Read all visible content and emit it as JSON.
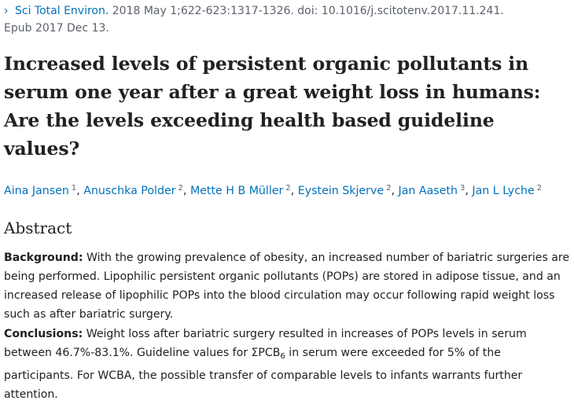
{
  "citation": {
    "chevron": "›",
    "journal": "Sci Total Environ.",
    "details": " 2018 May 1;622-623:1317-1326. doi: 10.1016/j.scitotenv.2017.11.241.",
    "epub": "Epub 2017 Dec 13."
  },
  "title": "Increased levels of persistent organic pollutants in serum one year after a great weight loss in humans: Are the levels exceeding health based guideline values?",
  "authors": [
    {
      "name": "Aina Jansen",
      "affiliation": "1"
    },
    {
      "name": "Anuschka Polder",
      "affiliation": "2"
    },
    {
      "name": "Mette H B Müller",
      "affiliation": "2"
    },
    {
      "name": "Eystein Skjerve",
      "affiliation": "2"
    },
    {
      "name": "Jan Aaseth",
      "affiliation": "3"
    },
    {
      "name": "Jan L Lyche",
      "affiliation": "2"
    }
  ],
  "author_separator": ", ",
  "abstract": {
    "heading": "Abstract",
    "background_label": "Background:",
    "background_text": " With the growing prevalence of obesity, an increased number of bariatric surgeries are being performed. Lipophilic persistent organic pollutants (POPs) are stored in adipose tissue, and an increased release of lipophilic POPs into the blood circulation may occur following rapid weight loss such as after bariatric surgery.",
    "conclusions_label": "Conclusions:",
    "conclusions_text_1": " Weight loss after bariatric surgery resulted in increases of POPs levels in serum between 46.7%-83.1%. Guideline values for ΣPCB",
    "conclusions_sub": "6",
    "conclusions_text_2": " in serum were exceeded for 5% of the participants. For WCBA, the possible transfer of comparable levels to infants warrants further attention."
  }
}
